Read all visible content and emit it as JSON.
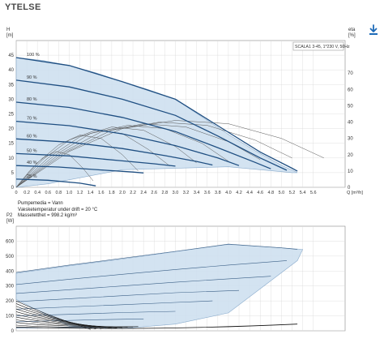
{
  "page": {
    "title": "YTELSE",
    "download_icon": "download-icon",
    "accent_color": "#1e6bb8",
    "envelope_fill": "#cfe0f0",
    "curve_color": "#1f4f82"
  },
  "info": {
    "pump_label": "SCALA1 3-45, 1*230 V, 50Hz",
    "lines": [
      "Pumpemedia = Vann",
      "Væsketemperatur under drift = 20 °C",
      "Massetetthet = 998.2 kg/m³"
    ]
  },
  "chart_data": [
    {
      "type": "line",
      "ylabel_top": "H",
      "ylabel_unit": "[m]",
      "y2label_top": "eta",
      "y2label_unit": "[%]",
      "xlabel": "Q [m³/h]",
      "xlim": [
        0,
        6.2
      ],
      "ylim": [
        0,
        50
      ],
      "y2lim": [
        0,
        90
      ],
      "xticks": [
        0,
        0.2,
        0.4,
        0.6,
        0.8,
        1.0,
        1.2,
        1.4,
        1.6,
        1.8,
        2.0,
        2.2,
        2.4,
        2.6,
        2.8,
        3.0,
        3.2,
        3.4,
        3.6,
        3.8,
        4.0,
        4.2,
        4.4,
        4.6,
        4.8,
        5.0,
        5.2,
        5.4,
        5.6
      ],
      "xtick_labels": [
        "0",
        "0.2",
        "0.4",
        "0.6",
        "0.8",
        "1.0",
        "1.2",
        "1.4",
        "1.6",
        "1.8",
        "2.0",
        "2.2",
        "2.4",
        "2.6",
        "2.8",
        "3.0",
        "3.2",
        "3.4",
        "3.6",
        "3.8",
        "4.0",
        "4.2",
        "4.4",
        "4.6",
        "4.8",
        "5.0",
        "5.2",
        "5.4",
        "5.6"
      ],
      "yticks": [
        0,
        5,
        10,
        15,
        20,
        25,
        30,
        35,
        40,
        45
      ],
      "y2ticks": [
        0,
        10,
        20,
        30,
        40,
        50,
        60,
        70
      ],
      "grid": true,
      "envelope": {
        "x": [
          0,
          0.5,
          1.0,
          1.5,
          2.0,
          2.5,
          3.0,
          3.5,
          4.0,
          4.5,
          5.0,
          5.3,
          5.2,
          4.0,
          2.0,
          0.6,
          0
        ],
        "y": [
          44.2,
          43.2,
          41.5,
          39.0,
          36.0,
          33.2,
          30.0,
          24.0,
          18.0,
          12.5,
          7.5,
          5.0,
          5.0,
          7.0,
          6.0,
          1.2,
          0
        ]
      },
      "speed_curves": [
        {
          "name": "100 %",
          "x": [
            0,
            1.0,
            2.0,
            3.0,
            3.8,
            4.6,
            5.2,
            5.3
          ],
          "y": [
            44.2,
            41.5,
            36.0,
            30.0,
            21.0,
            12.0,
            6.5,
            5.5
          ]
        },
        {
          "name": "90 %",
          "x": [
            0,
            1.0,
            2.0,
            3.0,
            3.8,
            4.6,
            5.1
          ],
          "y": [
            36.5,
            34.2,
            30.0,
            24.5,
            17.5,
            10.0,
            5.8
          ]
        },
        {
          "name": "80 %",
          "x": [
            0,
            1.0,
            2.0,
            3.0,
            3.8,
            4.5,
            4.8
          ],
          "y": [
            29.0,
            27.2,
            23.8,
            19.0,
            13.5,
            8.5,
            6.3
          ]
        },
        {
          "name": "70 %",
          "x": [
            0,
            1.0,
            2.0,
            3.0,
            3.8,
            4.2
          ],
          "y": [
            22.5,
            21.0,
            18.2,
            14.2,
            10.0,
            7.4
          ]
        },
        {
          "name": "60 %",
          "x": [
            0,
            1.0,
            2.0,
            2.8,
            3.4,
            3.7
          ],
          "y": [
            16.5,
            15.4,
            13.2,
            10.8,
            8.8,
            7.6
          ]
        },
        {
          "name": "50 %",
          "x": [
            0,
            1.0,
            2.0,
            2.6,
            3.0
          ],
          "y": [
            11.5,
            10.7,
            9.0,
            8.0,
            7.2
          ]
        },
        {
          "name": "40 %",
          "x": [
            0,
            0.8,
            1.6,
            2.2,
            2.4
          ],
          "y": [
            7.4,
            6.9,
            5.9,
            5.2,
            4.9
          ]
        },
        {
          "name": "25 %",
          "x": [
            0,
            0.6,
            1.2,
            1.5
          ],
          "y": [
            2.8,
            2.4,
            1.4,
            0.5
          ]
        }
      ],
      "efficiency_curves": [
        {
          "x": [
            0,
            1.0,
            2.0,
            3.0,
            4.0,
            5.0,
            5.8
          ],
          "y2": [
            0,
            22,
            36,
            41,
            39,
            30,
            18
          ]
        },
        {
          "x": [
            0,
            0.9,
            1.8,
            2.7,
            3.6,
            4.5,
            5.2
          ],
          "y2": [
            0,
            21,
            35,
            40,
            38,
            29,
            18
          ]
        },
        {
          "x": [
            0,
            0.8,
            1.6,
            2.4,
            3.2,
            4.0,
            4.6
          ],
          "y2": [
            0,
            20,
            34,
            39,
            37,
            28,
            17
          ]
        },
        {
          "x": [
            0,
            0.7,
            1.4,
            2.1,
            2.8,
            3.5,
            4.0
          ],
          "y2": [
            0,
            19,
            33,
            38,
            36,
            27,
            16
          ]
        },
        {
          "x": [
            0,
            0.6,
            1.2,
            1.8,
            2.4,
            3.0,
            3.4
          ],
          "y2": [
            0,
            18,
            31,
            37,
            35,
            25,
            15
          ]
        },
        {
          "x": [
            0,
            0.5,
            1.0,
            1.5,
            2.0,
            2.5,
            2.9
          ],
          "y2": [
            0,
            17,
            29,
            35,
            33,
            23,
            13
          ]
        },
        {
          "x": [
            0,
            0.4,
            0.8,
            1.2,
            1.6,
            2.0,
            2.3
          ],
          "y2": [
            0,
            15,
            26,
            32,
            30,
            20,
            10
          ]
        },
        {
          "x": [
            0,
            0.25,
            0.5,
            0.75,
            1.0,
            1.25,
            1.45
          ],
          "y2": [
            0,
            10,
            18,
            22,
            20,
            12,
            4
          ]
        }
      ]
    },
    {
      "type": "line",
      "ylabel_top": "P2",
      "ylabel_unit": "[W]",
      "xlim": [
        0,
        6.2
      ],
      "ylim": [
        0,
        700
      ],
      "yticks": [
        0,
        100,
        200,
        300,
        400,
        500,
        600
      ],
      "grid": true,
      "envelope": {
        "x": [
          0,
          1.0,
          2.0,
          3.0,
          4.0,
          5.0,
          5.4,
          5.3,
          4.0,
          3.0,
          2.0,
          1.0,
          0.5,
          0
        ],
        "y": [
          385,
          435,
          480,
          530,
          578,
          555,
          545,
          470,
          120,
          45,
          15,
          30,
          120,
          210
        ]
      },
      "power_curves": [
        {
          "name": "100 %",
          "x": [
            0,
            1.0,
            2.0,
            3.0,
            4.0,
            5.0,
            5.3
          ],
          "y": [
            390,
            440,
            485,
            532,
            580,
            555,
            545
          ]
        },
        {
          "name": "90 %",
          "x": [
            0,
            1.0,
            2.0,
            3.0,
            4.0,
            5.1
          ],
          "y": [
            310,
            345,
            378,
            410,
            440,
            470
          ]
        },
        {
          "name": "80 %",
          "x": [
            0,
            1.0,
            2.0,
            3.0,
            4.0,
            4.8
          ],
          "y": [
            250,
            275,
            300,
            325,
            348,
            365
          ]
        },
        {
          "name": "70 %",
          "x": [
            0,
            1.0,
            2.0,
            3.0,
            4.2
          ],
          "y": [
            195,
            215,
            235,
            255,
            270
          ]
        },
        {
          "name": "60 %",
          "x": [
            0,
            1.0,
            2.0,
            3.0,
            3.7
          ],
          "y": [
            145,
            160,
            175,
            190,
            200
          ]
        },
        {
          "name": "50 %",
          "x": [
            0,
            1.0,
            2.0,
            3.0
          ],
          "y": [
            100,
            110,
            122,
            130
          ]
        },
        {
          "name": "40 %",
          "x": [
            0,
            0.8,
            1.6,
            2.4
          ],
          "y": [
            60,
            68,
            75,
            80
          ]
        },
        {
          "name": "25 %",
          "x": [
            0,
            0.5,
            1.0,
            1.5
          ],
          "y": [
            18,
            20,
            22,
            22
          ]
        }
      ]
    }
  ]
}
